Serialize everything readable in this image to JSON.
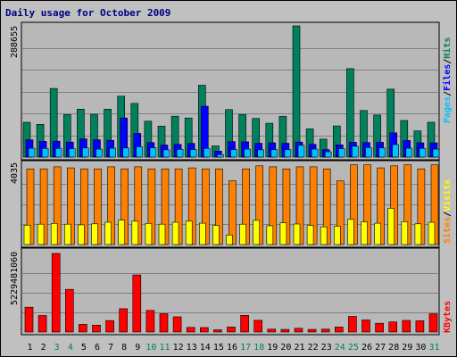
{
  "colors": {
    "frame": "#c0c0c0",
    "panel": "#b8b8b8",
    "title": "#000080",
    "hits": "#00805c",
    "files": "#0000ff",
    "pages": "#00c0ff",
    "visits": "#ffff00",
    "sites": "#ff8000",
    "kbytes": "#ff0000",
    "weekend": "#00805c",
    "weekday": "#000000"
  },
  "chart_data": {
    "type": "bar",
    "title": "Daily usage for October 2009",
    "categories": [
      "1",
      "2",
      "3",
      "4",
      "5",
      "6",
      "7",
      "8",
      "9",
      "10",
      "11",
      "12",
      "13",
      "14",
      "15",
      "16",
      "17",
      "18",
      "19",
      "20",
      "21",
      "22",
      "23",
      "24",
      "25",
      "26",
      "27",
      "28",
      "29",
      "30",
      "31"
    ],
    "weekend_days": [
      "3",
      "4",
      "10",
      "11",
      "17",
      "18",
      "24",
      "25",
      "31"
    ],
    "legend": {
      "pages": "Pages",
      "files": "Files",
      "hits": "Hits",
      "sep1": "/",
      "sep2": "/",
      "visits": "Visits",
      "sites": "Sites",
      "sep3": "/",
      "kbytes": "KBytes"
    },
    "panels": [
      {
        "id": "hits",
        "ymax": 288655,
        "ymax_label": "288655",
        "series": [
          {
            "name": "Hits",
            "values": [
              76600,
              72000,
              151000,
              93500,
              105500,
              94000,
              105500,
              134000,
              118000,
              79000,
              68000,
              90000,
              86000,
              158000,
              24500,
              104500,
              93500,
              85000,
              74500,
              89500,
              288655,
              62000,
              39500,
              68500,
              194500,
              102500,
              92500,
              149500,
              80500,
              57500,
              76600
            ]
          },
          {
            "name": "Files",
            "values": [
              38000,
              34500,
              35000,
              33000,
              40000,
              38000,
              37000,
              86000,
              52000,
              32000,
              26500,
              28000,
              30000,
              112000,
              13000,
              34000,
              33500,
              30500,
              31500,
              30500,
              33000,
              28000,
              16500,
              27000,
              32500,
              32000,
              32500,
              53500,
              36500,
              31500,
              31500
            ]
          },
          {
            "name": "Pages",
            "values": [
              19500,
              19000,
              19000,
              18500,
              20000,
              17500,
              19500,
              20000,
              23000,
              20500,
              16000,
              17000,
              16500,
              19000,
              5500,
              16500,
              17500,
              16000,
              16500,
              16500,
              26000,
              17500,
              11500,
              18500,
              24000,
              21000,
              20000,
              27500,
              19500,
              19000,
              17500
            ]
          }
        ]
      },
      {
        "id": "sites",
        "ymax": 4035,
        "ymax_label": "4035",
        "series": [
          {
            "name": "Sites",
            "values": [
              3760,
              3760,
              3860,
              3810,
              3760,
              3760,
              3860,
              3760,
              3860,
              3760,
              3760,
              3760,
              3810,
              3760,
              3760,
              3160,
              3760,
              3910,
              3860,
              3760,
              3860,
              3860,
              3760,
              3160,
              3960,
              3960,
              3810,
              3910,
              3960,
              3760,
              3960
            ]
          },
          {
            "name": "Visits",
            "values": [
              960,
              1010,
              1050,
              1010,
              980,
              1030,
              1110,
              1210,
              1160,
              1050,
              1010,
              1110,
              1160,
              1060,
              950,
              470,
              1010,
              1200,
              930,
              1080,
              1020,
              950,
              880,
              910,
              1250,
              1130,
              1060,
              1800,
              1140,
              1030,
              1110
            ]
          }
        ]
      },
      {
        "id": "kbytes",
        "ymax": 5229481060,
        "ymax_label": "5229481060",
        "series": [
          {
            "name": "KBytes",
            "values": [
              1650000000,
              1100000000,
              5229481060,
              2840000000,
              510000000,
              460000000,
              760000000,
              1550000000,
              3800000000,
              1440000000,
              1220000000,
              1010000000,
              310000000,
              300000000,
              150000000,
              330000000,
              1110000000,
              780000000,
              190000000,
              170000000,
              250000000,
              170000000,
              190000000,
              330000000,
              1040000000,
              800000000,
              580000000,
              670000000,
              770000000,
              750000000,
              1210000000
            ]
          }
        ]
      }
    ]
  }
}
